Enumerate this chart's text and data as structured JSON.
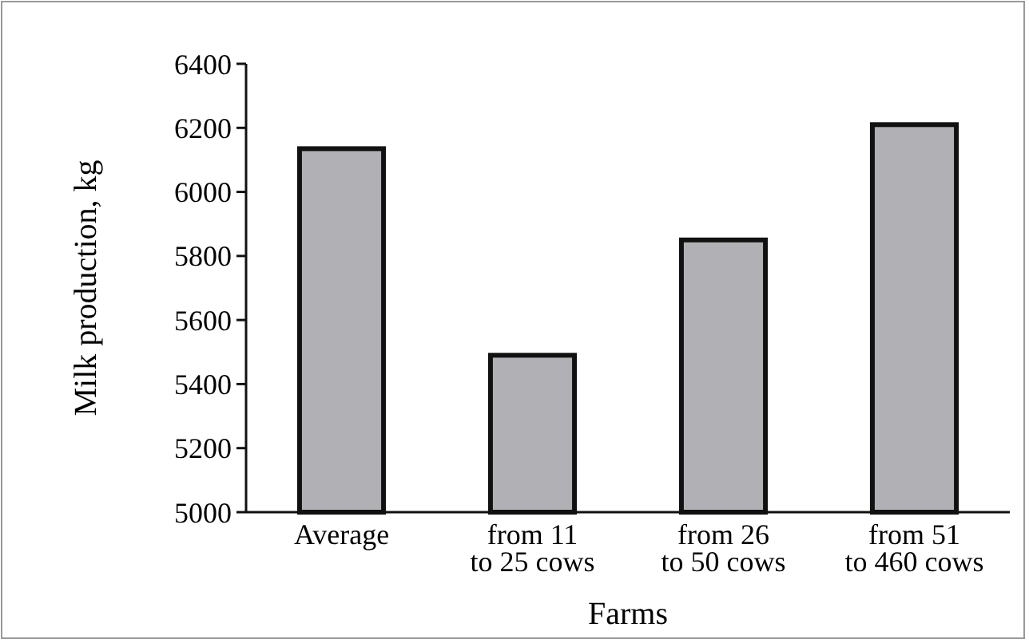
{
  "chart_data": {
    "type": "bar",
    "xlabel": "Farms",
    "ylabel": "Milk production, kg",
    "categories": [
      "Average",
      "from 11 to 25 cows",
      "from 26 to 50 cows",
      "from 51 to 460 cows"
    ],
    "values": [
      6135,
      5490,
      5850,
      6210
    ],
    "color": "#b1b1b5",
    "ylim": [
      5000,
      6400
    ],
    "yticks": [
      5000,
      5200,
      5400,
      5600,
      5800,
      6000,
      6200,
      6400
    ],
    "grid": false
  }
}
